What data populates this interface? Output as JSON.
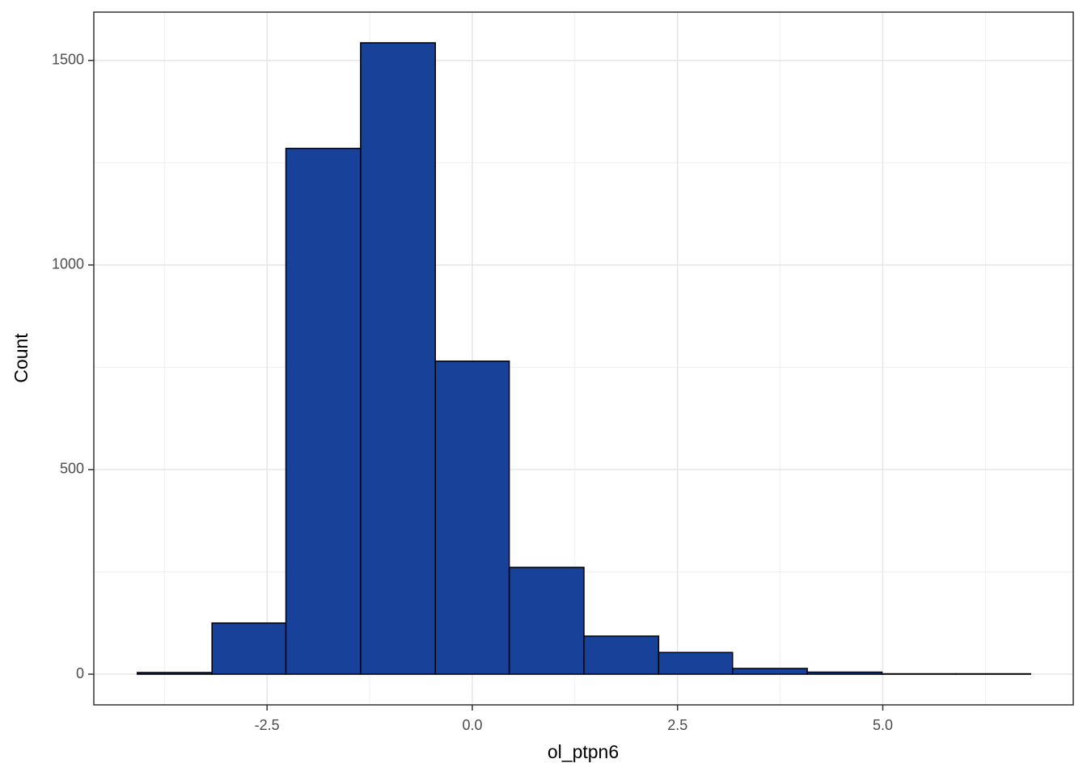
{
  "chart_data": {
    "type": "histogram",
    "x_label": "ol_ptpn6",
    "y_label": "Count",
    "bins": [
      -4.08,
      -3.17,
      -2.27,
      -1.36,
      -0.45,
      0.45,
      1.36,
      2.27,
      3.17,
      4.08,
      4.99,
      5.89,
      6.8
    ],
    "counts": [
      4,
      125,
      1285,
      1543,
      765,
      261,
      93,
      53,
      14,
      5,
      1,
      1
    ],
    "color": "#18429a",
    "edge_color": "#000000",
    "xlim": [
      -4.61,
      7.32
    ],
    "ylim": [
      -75,
      1618
    ],
    "xticks": [
      {
        "value": -2.5,
        "label": "-2.5"
      },
      {
        "value": 0,
        "label": "0.0"
      },
      {
        "value": 2.5,
        "label": "2.5"
      },
      {
        "value": 5,
        "label": "5.0"
      }
    ],
    "yticks": [
      0,
      500,
      1000,
      1500
    ],
    "x_minor_ticks": [
      -3.75,
      -1.25,
      1.25,
      3.75,
      6.25
    ],
    "y_minor_ticks": [
      250,
      750,
      1250
    ],
    "grid": true
  }
}
